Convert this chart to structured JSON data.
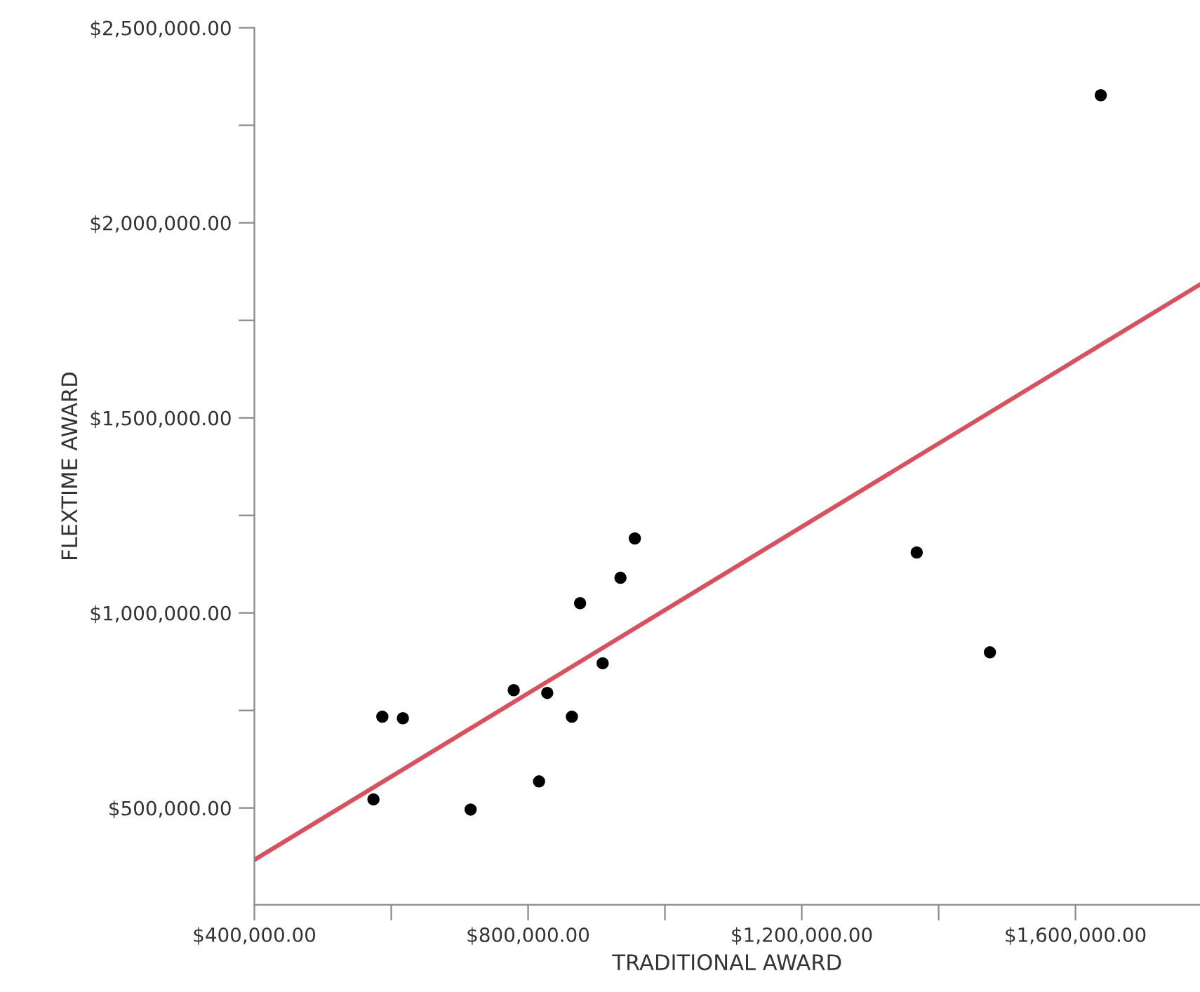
{
  "chart_data": {
    "type": "scatter",
    "xlabel": "TRADITIONAL AWARD",
    "ylabel": "FLEXTIME AWARD",
    "xlim": [
      400000,
      1782000
    ],
    "ylim": [
      252000,
      2500000
    ],
    "xticks": [
      {
        "value": 400000,
        "label": "$400,000.00"
      },
      {
        "value": 600000,
        "label": null
      },
      {
        "value": 800000,
        "label": "$800,000.00"
      },
      {
        "value": 1000000,
        "label": null
      },
      {
        "value": 1200000,
        "label": "$1,200,000.00"
      },
      {
        "value": 1400000,
        "label": null
      },
      {
        "value": 1600000,
        "label": "$1,600,000.00"
      }
    ],
    "yticks": [
      {
        "value": 500000,
        "label": "$500,000.00"
      },
      {
        "value": 750000,
        "label": null
      },
      {
        "value": 1000000,
        "label": "$1,000,000.00"
      },
      {
        "value": 1250000,
        "label": null
      },
      {
        "value": 1500000,
        "label": "$1,500,000.00"
      },
      {
        "value": 1750000,
        "label": null
      },
      {
        "value": 2000000,
        "label": "$2,000,000.00"
      },
      {
        "value": 2250000,
        "label": null
      },
      {
        "value": 2500000,
        "label": "$2,500,000.00"
      }
    ],
    "grid": false,
    "marker": "circle",
    "series": [
      {
        "color": "#000000",
        "x": [
          574000,
          587000,
          617000,
          716000,
          779000,
          816000,
          828000,
          864000,
          876000,
          909000,
          935000,
          956000,
          1368000,
          1475000,
          1637000
        ],
        "values": [
          522000,
          734000,
          730000,
          496000,
          802000,
          568000,
          795000,
          734000,
          1025000,
          871000,
          1090000,
          1191000,
          1155000,
          899000,
          2327000
        ]
      },
      {
        "type": "line",
        "color": "#d9505e",
        "marker": "none",
        "line_style": "solid",
        "x": [
          400000,
          1782000
        ],
        "values": [
          367000,
          1842000
        ]
      }
    ]
  }
}
